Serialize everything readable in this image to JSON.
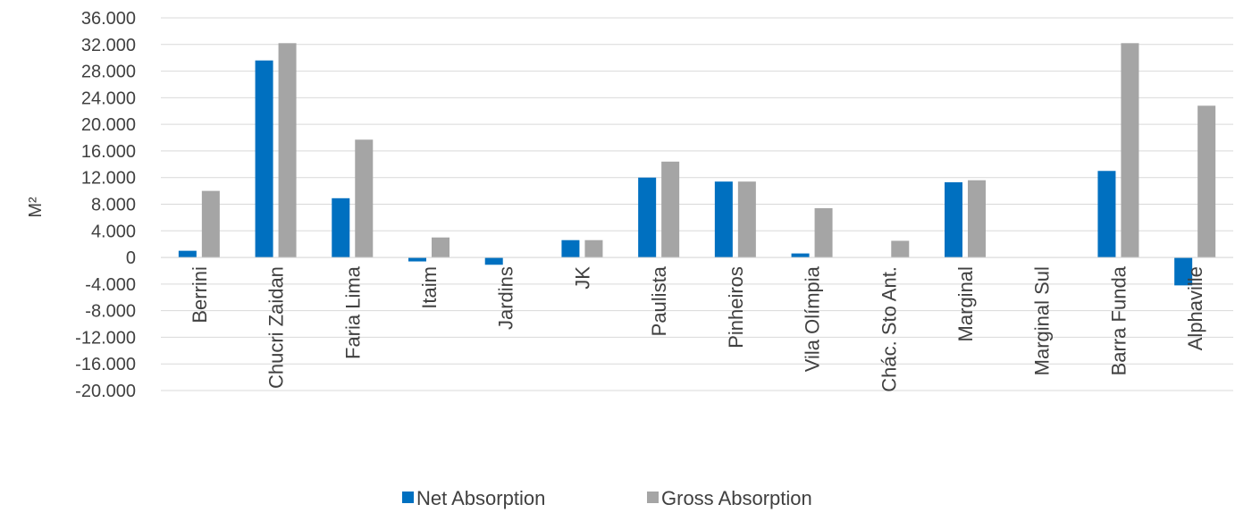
{
  "chart_data": {
    "type": "bar",
    "title": "",
    "xlabel": "",
    "ylabel": "M²",
    "ylim": [
      -20000,
      36000
    ],
    "yticks": [
      36000,
      32000,
      28000,
      24000,
      20000,
      16000,
      12000,
      8000,
      4000,
      0,
      -4000,
      -8000,
      -12000,
      -16000,
      -20000
    ],
    "ytick_labels": [
      "36.000",
      "32.000",
      "28.000",
      "24.000",
      "20.000",
      "16.000",
      "12.000",
      "8.000",
      "4.000",
      "0",
      "-4.000",
      "-8.000",
      "-12.000",
      "-16.000",
      "-20.000"
    ],
    "grid": true,
    "legend_position": "bottom",
    "categories": [
      "Berrini",
      "Chucri Zaidan",
      "Faria Lima",
      "Itaim",
      "Jardins",
      "JK",
      "Paulista",
      "Pinheiros",
      "Vila Olímpia",
      "Chác. Sto Ant.",
      "Marginal",
      "Marginal Sul",
      "Barra Funda",
      "Alphaville"
    ],
    "series": [
      {
        "name": "Net Absorption",
        "color": "#0070C0",
        "values": [
          1000,
          29600,
          8900,
          -600,
          -1100,
          2600,
          12000,
          11400,
          600,
          0,
          11300,
          0,
          13000,
          -4200
        ]
      },
      {
        "name": "Gross Absorption",
        "color": "#A5A5A5",
        "values": [
          10000,
          32200,
          17700,
          3000,
          0,
          2600,
          14400,
          11400,
          7400,
          2500,
          11600,
          0,
          32200,
          22800
        ]
      }
    ]
  }
}
